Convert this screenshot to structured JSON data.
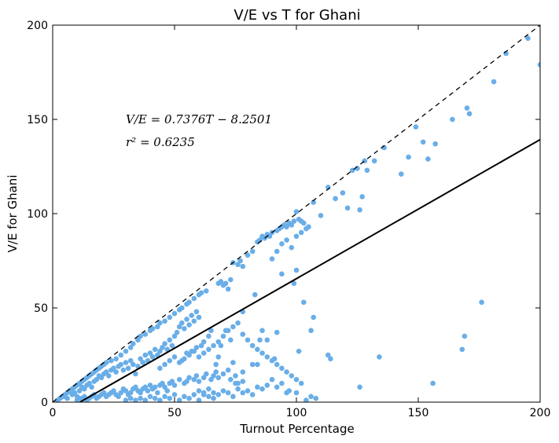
{
  "chart_data": {
    "type": "scatter",
    "title": "V/E vs T for Ghani",
    "xlabel": "Turnout Percentage",
    "ylabel": "V/E for Ghani",
    "xlim": [
      0,
      200
    ],
    "ylim": [
      0,
      200
    ],
    "x_ticks": [
      0,
      50,
      100,
      150,
      200
    ],
    "y_ticks": [
      0,
      50,
      100,
      150,
      200
    ],
    "grid": false,
    "point_color": "#6aaee8",
    "fit_line": {
      "slope": 0.7376,
      "intercept": -8.2501,
      "color": "#000000",
      "style": "solid"
    },
    "reference_line": {
      "slope": 1,
      "intercept": 0,
      "color": "#000000",
      "style": "dashed"
    },
    "annotations": [
      {
        "text": "V/E = 0.7376T − 8.2501",
        "x": 30,
        "y": 150
      },
      {
        "text": "r² = 0.6235",
        "x": 30,
        "y": 138
      }
    ],
    "points": [
      [
        2,
        1
      ],
      [
        3,
        2
      ],
      [
        4,
        3
      ],
      [
        5,
        4
      ],
      [
        6,
        5
      ],
      [
        7,
        6
      ],
      [
        8,
        7
      ],
      [
        9,
        8
      ],
      [
        10,
        9
      ],
      [
        11,
        10
      ],
      [
        12,
        11
      ],
      [
        13,
        12
      ],
      [
        14,
        13
      ],
      [
        15,
        14
      ],
      [
        16,
        15
      ],
      [
        17,
        16
      ],
      [
        18,
        17
      ],
      [
        19,
        18
      ],
      [
        20,
        19
      ],
      [
        21,
        20
      ],
      [
        22,
        21
      ],
      [
        24,
        22
      ],
      [
        26,
        23
      ],
      [
        28,
        25
      ],
      [
        30,
        27
      ],
      [
        32,
        29
      ],
      [
        33,
        31
      ],
      [
        35,
        33
      ],
      [
        36,
        35
      ],
      [
        38,
        36
      ],
      [
        40,
        38
      ],
      [
        41,
        39
      ],
      [
        43,
        40
      ],
      [
        44,
        42
      ],
      [
        46,
        43
      ],
      [
        48,
        45
      ],
      [
        50,
        47
      ],
      [
        52,
        49
      ],
      [
        53,
        50
      ],
      [
        55,
        52
      ],
      [
        56,
        53
      ],
      [
        58,
        55
      ],
      [
        60,
        57
      ],
      [
        61,
        58
      ],
      [
        63,
        59
      ],
      [
        5,
        3
      ],
      [
        6,
        2
      ],
      [
        8,
        4
      ],
      [
        9,
        5
      ],
      [
        10,
        3
      ],
      [
        11,
        6
      ],
      [
        12,
        8
      ],
      [
        13,
        7
      ],
      [
        14,
        9
      ],
      [
        15,
        10
      ],
      [
        16,
        8
      ],
      [
        17,
        11
      ],
      [
        18,
        12
      ],
      [
        19,
        14
      ],
      [
        20,
        13
      ],
      [
        21,
        15
      ],
      [
        22,
        16
      ],
      [
        23,
        14
      ],
      [
        24,
        17
      ],
      [
        25,
        18
      ],
      [
        26,
        16
      ],
      [
        27,
        19
      ],
      [
        28,
        20
      ],
      [
        29,
        17
      ],
      [
        30,
        21
      ],
      [
        31,
        18
      ],
      [
        32,
        22
      ],
      [
        33,
        20
      ],
      [
        34,
        15
      ],
      [
        35,
        19
      ],
      [
        36,
        23
      ],
      [
        37,
        21
      ],
      [
        38,
        25
      ],
      [
        39,
        22
      ],
      [
        40,
        26
      ],
      [
        41,
        24
      ],
      [
        42,
        28
      ],
      [
        43,
        25
      ],
      [
        44,
        27
      ],
      [
        45,
        29
      ],
      [
        46,
        31
      ],
      [
        47,
        28
      ],
      [
        48,
        33
      ],
      [
        49,
        30
      ],
      [
        50,
        35
      ],
      [
        51,
        37
      ],
      [
        52,
        40
      ],
      [
        53,
        42
      ],
      [
        54,
        39
      ],
      [
        55,
        44
      ],
      [
        56,
        41
      ],
      [
        57,
        46
      ],
      [
        58,
        43
      ],
      [
        59,
        48
      ],
      [
        60,
        45
      ],
      [
        10,
        1
      ],
      [
        11,
        2
      ],
      [
        12,
        2
      ],
      [
        13,
        3
      ],
      [
        14,
        1
      ],
      [
        15,
        2
      ],
      [
        16,
        3
      ],
      [
        17,
        4
      ],
      [
        18,
        2
      ],
      [
        19,
        3
      ],
      [
        20,
        4
      ],
      [
        21,
        5
      ],
      [
        22,
        3
      ],
      [
        23,
        4
      ],
      [
        24,
        5
      ],
      [
        25,
        6
      ],
      [
        26,
        4
      ],
      [
        27,
        3
      ],
      [
        28,
        5
      ],
      [
        29,
        7
      ],
      [
        30,
        6
      ],
      [
        31,
        4
      ],
      [
        32,
        5
      ],
      [
        33,
        7
      ],
      [
        34,
        8
      ],
      [
        35,
        6
      ],
      [
        36,
        5
      ],
      [
        37,
        7
      ],
      [
        38,
        8
      ],
      [
        39,
        6
      ],
      [
        40,
        9
      ],
      [
        41,
        7
      ],
      [
        42,
        8
      ],
      [
        43,
        5
      ],
      [
        44,
        9
      ],
      [
        45,
        10
      ],
      [
        46,
        8
      ],
      [
        47,
        6
      ],
      [
        48,
        10
      ],
      [
        49,
        11
      ],
      [
        50,
        9
      ],
      [
        52,
        12
      ],
      [
        54,
        10
      ],
      [
        55,
        11
      ],
      [
        56,
        13
      ],
      [
        58,
        12
      ],
      [
        59,
        14
      ],
      [
        60,
        11
      ],
      [
        62,
        13
      ],
      [
        63,
        15
      ],
      [
        65,
        12
      ],
      [
        66,
        14
      ],
      [
        67,
        16
      ],
      [
        68,
        13
      ],
      [
        70,
        15
      ],
      [
        72,
        17
      ],
      [
        73,
        12
      ],
      [
        75,
        14
      ],
      [
        76,
        10
      ],
      [
        78,
        16
      ],
      [
        30,
        1
      ],
      [
        32,
        2
      ],
      [
        34,
        1
      ],
      [
        36,
        2
      ],
      [
        38,
        1
      ],
      [
        40,
        3
      ],
      [
        42,
        2
      ],
      [
        44,
        1
      ],
      [
        46,
        3
      ],
      [
        48,
        2
      ],
      [
        50,
        4
      ],
      [
        52,
        1
      ],
      [
        54,
        3
      ],
      [
        56,
        2
      ],
      [
        58,
        4
      ],
      [
        60,
        1
      ],
      [
        62,
        5
      ],
      [
        64,
        3
      ],
      [
        66,
        2
      ],
      [
        68,
        4
      ],
      [
        70,
        6
      ],
      [
        72,
        5
      ],
      [
        74,
        3
      ],
      [
        76,
        7
      ],
      [
        78,
        5
      ],
      [
        80,
        6
      ],
      [
        82,
        4
      ],
      [
        84,
        8
      ],
      [
        86,
        7
      ],
      [
        88,
        9
      ],
      [
        44,
        18
      ],
      [
        46,
        20
      ],
      [
        48,
        22
      ],
      [
        50,
        24
      ],
      [
        52,
        21
      ],
      [
        54,
        23
      ],
      [
        56,
        25
      ],
      [
        58,
        27
      ],
      [
        60,
        24
      ],
      [
        62,
        26
      ],
      [
        64,
        28
      ],
      [
        66,
        30
      ],
      [
        68,
        32
      ],
      [
        70,
        35
      ],
      [
        72,
        38
      ],
      [
        74,
        40
      ],
      [
        76,
        42
      ],
      [
        78,
        36
      ],
      [
        80,
        33
      ],
      [
        82,
        30
      ],
      [
        84,
        28
      ],
      [
        86,
        26
      ],
      [
        88,
        24
      ],
      [
        90,
        22
      ],
      [
        92,
        20
      ],
      [
        94,
        18
      ],
      [
        96,
        16
      ],
      [
        98,
        14
      ],
      [
        100,
        12
      ],
      [
        102,
        10
      ],
      [
        68,
        63
      ],
      [
        69,
        64
      ],
      [
        70,
        62
      ],
      [
        71,
        63
      ],
      [
        72,
        60
      ],
      [
        73,
        65
      ],
      [
        74,
        74
      ],
      [
        76,
        73
      ],
      [
        77,
        75
      ],
      [
        78,
        72
      ],
      [
        80,
        78
      ],
      [
        82,
        80
      ],
      [
        84,
        85
      ],
      [
        85,
        86
      ],
      [
        86,
        88
      ],
      [
        87,
        87
      ],
      [
        88,
        89
      ],
      [
        89,
        88
      ],
      [
        90,
        90
      ],
      [
        92,
        91
      ],
      [
        93,
        92
      ],
      [
        94,
        93
      ],
      [
        95,
        94
      ],
      [
        96,
        93
      ],
      [
        97,
        95
      ],
      [
        98,
        94
      ],
      [
        99,
        96
      ],
      [
        100,
        101
      ],
      [
        101,
        97
      ],
      [
        102,
        96
      ],
      [
        103,
        95
      ],
      [
        105,
        93
      ],
      [
        107,
        106
      ],
      [
        110,
        99
      ],
      [
        113,
        114
      ],
      [
        116,
        108
      ],
      [
        119,
        111
      ],
      [
        121,
        103
      ],
      [
        123,
        123
      ],
      [
        125,
        124
      ],
      [
        126,
        102
      ],
      [
        127,
        109
      ],
      [
        128,
        128
      ],
      [
        129,
        123
      ],
      [
        132,
        128
      ],
      [
        136,
        135
      ],
      [
        143,
        121
      ],
      [
        146,
        130
      ],
      [
        149,
        146
      ],
      [
        152,
        138
      ],
      [
        154,
        129
      ],
      [
        157,
        137
      ],
      [
        164,
        150
      ],
      [
        170,
        156
      ],
      [
        171,
        153
      ],
      [
        181,
        170
      ],
      [
        186,
        185
      ],
      [
        195,
        193
      ],
      [
        200,
        179
      ],
      [
        176,
        53
      ],
      [
        169,
        35
      ],
      [
        168,
        28
      ],
      [
        156,
        10
      ],
      [
        134,
        24
      ],
      [
        126,
        8
      ],
      [
        114,
        23
      ],
      [
        113,
        25
      ],
      [
        107,
        45
      ],
      [
        106,
        38
      ],
      [
        103,
        53
      ],
      [
        101,
        27
      ],
      [
        100,
        70
      ],
      [
        99,
        63
      ],
      [
        97,
        6
      ],
      [
        94,
        68
      ],
      [
        92,
        37
      ],
      [
        91,
        23
      ],
      [
        88,
        33
      ],
      [
        86,
        38
      ],
      [
        85,
        33
      ],
      [
        84,
        20
      ],
      [
        83,
        57
      ],
      [
        82,
        20
      ],
      [
        78,
        48
      ],
      [
        78,
        11
      ],
      [
        75,
        10
      ],
      [
        74,
        21
      ],
      [
        73,
        33
      ],
      [
        71,
        38
      ],
      [
        69,
        30
      ],
      [
        68,
        24
      ],
      [
        67,
        20
      ],
      [
        65,
        38
      ],
      [
        64,
        35
      ],
      [
        62,
        32
      ],
      [
        61,
        30
      ],
      [
        59,
        29
      ],
      [
        57,
        27
      ],
      [
        55,
        26
      ],
      [
        53,
        22
      ],
      [
        90,
        76
      ],
      [
        92,
        80
      ],
      [
        94,
        84
      ],
      [
        96,
        86
      ],
      [
        98,
        82
      ],
      [
        100,
        88
      ],
      [
        102,
        90
      ],
      [
        104,
        92
      ],
      [
        60,
        6
      ],
      [
        62,
        4
      ],
      [
        64,
        7
      ],
      [
        66,
        5
      ],
      [
        90,
        12
      ],
      [
        92,
        8
      ],
      [
        94,
        10
      ],
      [
        96,
        5
      ],
      [
        100,
        5
      ],
      [
        104,
        1
      ],
      [
        106,
        3
      ],
      [
        108,
        2
      ]
    ]
  }
}
